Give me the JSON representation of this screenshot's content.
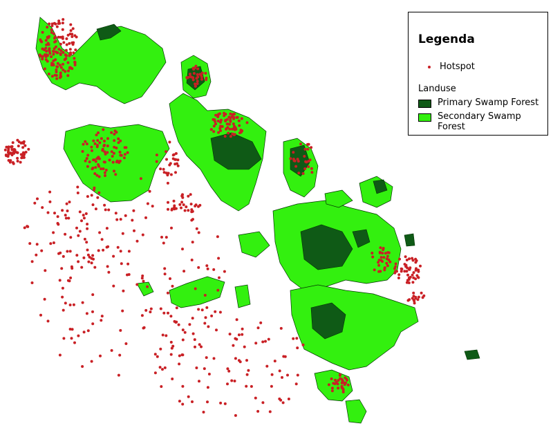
{
  "legend": {
    "title": "Legenda",
    "hotspot_label": "Hotspot",
    "landuse_heading": "Landuse",
    "items": [
      {
        "label": "Primary Swamp Forest",
        "color": "#0f5a16"
      },
      {
        "label": "Secondary Swamp Forest",
        "color": "#33f00f"
      }
    ],
    "hotspot_color": "#c92025"
  }
}
